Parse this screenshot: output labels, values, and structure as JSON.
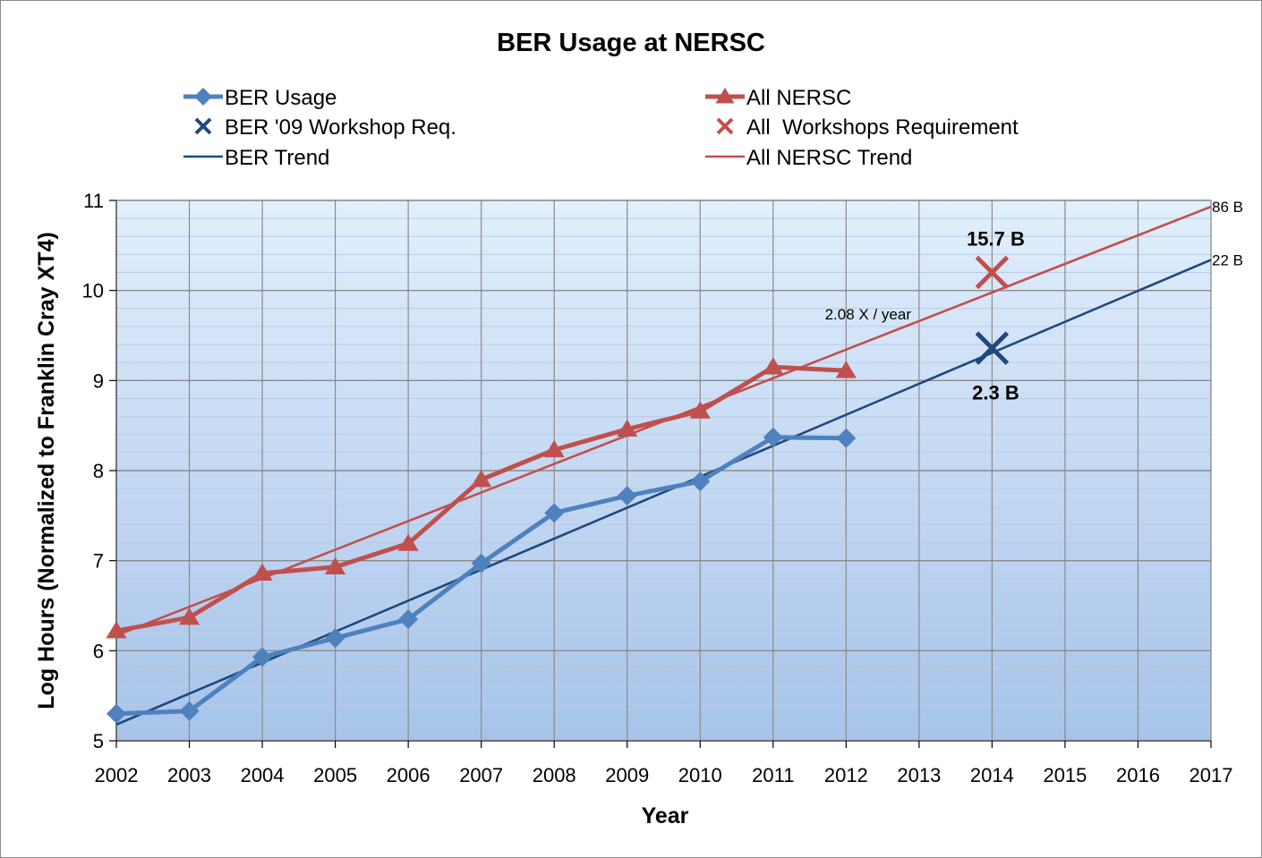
{
  "chart_data": {
    "type": "line",
    "title": "BER Usage at NERSC",
    "xlabel": "Year",
    "ylabel": "Log Hours (Normalized to Franklin Cray XT4)",
    "xlim": [
      2002,
      2017
    ],
    "ylim": [
      5,
      11
    ],
    "x_ticks": [
      "2002",
      "2003",
      "2004",
      "2005",
      "2006",
      "2007",
      "2008",
      "2009",
      "2010",
      "2011",
      "2012",
      "2013",
      "2014",
      "2015",
      "2016",
      "2017"
    ],
    "y_ticks": [
      "5",
      "6",
      "7",
      "8",
      "9",
      "10",
      "11"
    ],
    "grid": true,
    "legend_position": "top",
    "series": [
      {
        "name": "BER Usage",
        "kind": "line-marker",
        "marker": "diamond",
        "color": "#4f81bd",
        "x": [
          2002,
          2003,
          2004,
          2005,
          2006,
          2007,
          2008,
          2009,
          2010,
          2011,
          2012
        ],
        "y": [
          5.3,
          5.33,
          5.93,
          6.14,
          6.35,
          6.97,
          7.53,
          7.72,
          7.88,
          8.37,
          8.36
        ]
      },
      {
        "name": "All NERSC",
        "kind": "line-marker",
        "marker": "triangle",
        "color": "#c0504d",
        "x": [
          2002,
          2003,
          2004,
          2005,
          2006,
          2007,
          2008,
          2009,
          2010,
          2011,
          2012
        ],
        "y": [
          6.22,
          6.37,
          6.86,
          6.93,
          7.19,
          7.9,
          8.23,
          8.46,
          8.66,
          9.15,
          9.11
        ]
      },
      {
        "name": "BER '09 Workshop Req.",
        "kind": "marker",
        "marker": "x",
        "color": "#1f497d",
        "x": [
          2014
        ],
        "y": [
          9.36
        ]
      },
      {
        "name": "All  Workshops Requirement",
        "kind": "marker",
        "marker": "x",
        "color": "#c0504d",
        "x": [
          2014
        ],
        "y": [
          10.2
        ]
      },
      {
        "name": "BER Trend",
        "kind": "trend",
        "color": "#1f497d",
        "x": [
          2002,
          2017
        ],
        "y": [
          5.18,
          10.34
        ]
      },
      {
        "name": "All NERSC Trend",
        "kind": "trend",
        "color": "#c0504d",
        "x": [
          2002,
          2017
        ],
        "y": [
          6.17,
          10.93
        ]
      }
    ],
    "annotations": [
      {
        "text": "86 B",
        "x": 2017,
        "y": 10.93,
        "style": "end"
      },
      {
        "text": "22 B",
        "x": 2017,
        "y": 10.34,
        "style": "end"
      },
      {
        "text": "2.08 X / year",
        "x": 2012.3,
        "y": 9.74,
        "style": "normal"
      },
      {
        "text": "15.7 B",
        "x": 2014.05,
        "y": 10.58,
        "style": "bold"
      },
      {
        "text": "2.3 B",
        "x": 2014.05,
        "y": 8.87,
        "style": "bold"
      }
    ]
  }
}
